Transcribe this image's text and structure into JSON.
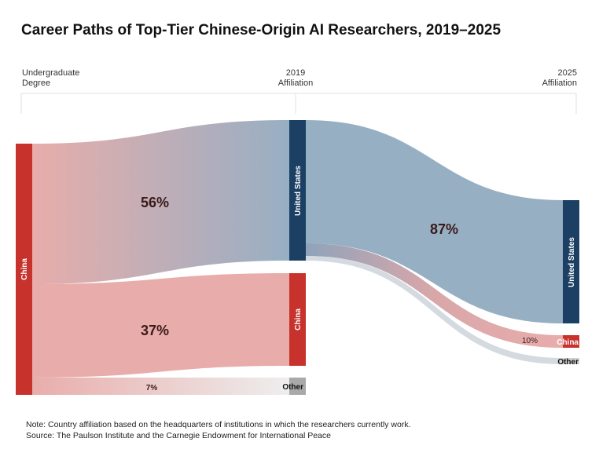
{
  "title": "Career Paths of Top-Tier Chinese-Origin AI Researchers, 2019–2025",
  "columns": {
    "col1": [
      "Undergraduate",
      "Degree"
    ],
    "col2": [
      "2019",
      "Affiliation"
    ],
    "col3": [
      "2025",
      "Affiliation"
    ]
  },
  "nodes": {
    "source_china": "China",
    "us_2019": "United States",
    "china_2019": "China",
    "other_2019": "Other",
    "us_2025": "United States",
    "china_2025": "China",
    "other_2025": "Other"
  },
  "flows": {
    "china_to_us": "56%",
    "china_to_china": "37%",
    "china_to_other": "7%",
    "us_to_us": "87%",
    "us_to_china": "10%"
  },
  "colors": {
    "red": "#c8322d",
    "navy": "#1c3f64",
    "gray": "#a9a9a9",
    "pink": "#e8adab",
    "bluegray": "#97afc3"
  },
  "note": "Note: Country affiliation based on the headquarters of institutions in which the researchers currently work.",
  "source": "Source: The Paulson Institute and the Carnegie Endowment for International Peace"
}
